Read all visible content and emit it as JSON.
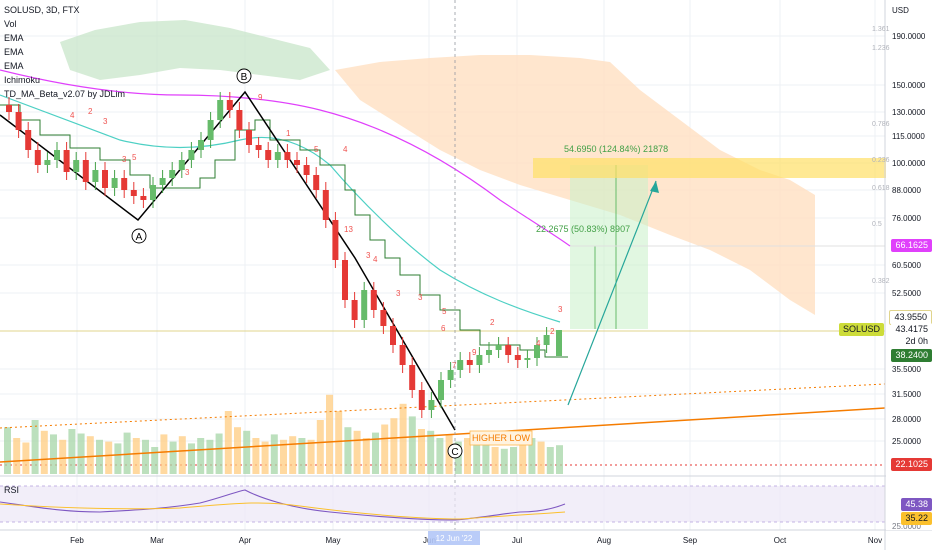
{
  "legend": {
    "symbol": "SOLUSD, 3D, FTX",
    "indicators": [
      "Vol",
      "EMA",
      "EMA",
      "EMA",
      "Ichimoku",
      "TD_MA_Beta_v2.07 by JDLim"
    ]
  },
  "price_axis": {
    "currency": "USD",
    "labels": [
      "190.0000",
      "150.0000",
      "130.0000",
      "115.0000",
      "100.0000",
      "88.0000",
      "76.0000",
      "60.5000",
      "52.5000",
      "35.5000",
      "31.5000",
      "28.0000",
      "25.0000"
    ],
    "values": [
      190,
      150,
      130,
      115,
      100,
      88,
      76,
      60.5,
      52.5,
      35.5,
      31.5,
      28,
      25
    ],
    "fib_labels": [
      "1.361",
      "1.236",
      "0.786",
      "0.618",
      "0.5",
      "0.382",
      "0.236"
    ]
  },
  "rsi_axis": {
    "labels": [
      "25.0000"
    ]
  },
  "time_axis": {
    "labels": [
      "Feb",
      "Mar",
      "Apr",
      "May",
      "Jun",
      "Jul",
      "Aug",
      "Sep",
      "Oct",
      "Nov"
    ],
    "crosshair_date": "12 Jun '22"
  },
  "price_tags": {
    "ema_pink": "66.1625",
    "upper_level": "43.9550",
    "last_price": "43.4175",
    "countdown": "2d 0h",
    "ema_green": "38.2400",
    "low_level": "22.1025",
    "symbol": "SOLUSD"
  },
  "rsi": {
    "label": "RSI",
    "value1": "45.38",
    "value2": "35.22"
  },
  "annotations": {
    "wave_a": "A",
    "wave_b": "B",
    "wave_c": "C",
    "higher_low": "HIGHER LOW",
    "target1": "54.6950 (124.84%) 21878",
    "target2": "22.2675 (50.83%) 8907"
  },
  "colors": {
    "bull": "#4caf50",
    "bear": "#e53935",
    "ema_pink": "#e040fb",
    "ema_teal": "#4dd0c4",
    "ema_green": "#2e7d32",
    "cloud": "#ffcc99",
    "target_zone": "#ffe066",
    "trend": "#f57c00"
  }
}
